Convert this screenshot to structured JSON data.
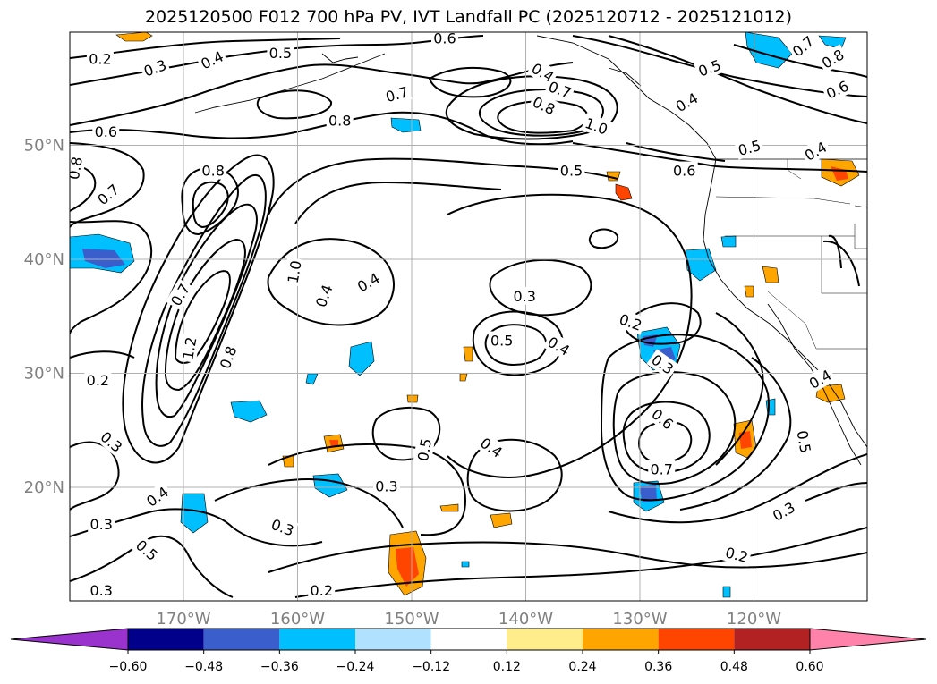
{
  "title": "2025120500 F012 700 hPa PV, IVT Landfall PC (2025120712 - 2025121012)",
  "map": {
    "lat_labels": [
      {
        "lat": 50,
        "text": "50°N"
      },
      {
        "lat": 40,
        "text": "40°N"
      },
      {
        "lat": 30,
        "text": "30°N"
      },
      {
        "lat": 20,
        "text": "20°N"
      }
    ],
    "lon_labels": [
      {
        "lon": -170,
        "text": "170°W"
      },
      {
        "lon": -160,
        "text": "160°W"
      },
      {
        "lon": -150,
        "text": "150°W"
      },
      {
        "lon": -140,
        "text": "140°W"
      },
      {
        "lon": -130,
        "text": "130°W"
      },
      {
        "lon": -120,
        "text": "120°W"
      }
    ],
    "contour_labels": [
      {
        "text": "0.2",
        "lon": -177.3,
        "lat": 57.6,
        "rot": 0
      },
      {
        "text": "0.3",
        "lon": -172.5,
        "lat": 56.8,
        "rot": -20
      },
      {
        "text": "0.4",
        "lon": -167.5,
        "lat": 57.5,
        "rot": -25
      },
      {
        "text": "0.5",
        "lon": -161.5,
        "lat": 58.1,
        "rot": 0
      },
      {
        "text": "0.6",
        "lon": -147.1,
        "lat": 59.4,
        "rot": 0
      },
      {
        "text": "0.4",
        "lon": -138.5,
        "lat": 56.4,
        "rot": 30
      },
      {
        "text": "0.7",
        "lon": -151.3,
        "lat": 54.5,
        "rot": -15
      },
      {
        "text": "0.8",
        "lon": -138.4,
        "lat": 53.5,
        "rot": 25
      },
      {
        "text": "0.7",
        "lon": -137.0,
        "lat": 54.9,
        "rot": 20
      },
      {
        "text": "1.0",
        "lon": -133.8,
        "lat": 51.7,
        "rot": 20
      },
      {
        "text": "0.8",
        "lon": -156.3,
        "lat": 52.2,
        "rot": 0
      },
      {
        "text": "0.7",
        "lon": -115.7,
        "lat": 58.7,
        "rot": -40
      },
      {
        "text": "0.8",
        "lon": -113.1,
        "lat": 57.6,
        "rot": -30
      },
      {
        "text": "0.5",
        "lon": -123.9,
        "lat": 56.8,
        "rot": -20
      },
      {
        "text": "0.4",
        "lon": -125.9,
        "lat": 53.8,
        "rot": -30
      },
      {
        "text": "0.6",
        "lon": -112.7,
        "lat": 54.9,
        "rot": -25
      },
      {
        "text": "0.5",
        "lon": -120.4,
        "lat": 49.8,
        "rot": -15
      },
      {
        "text": "0.4",
        "lon": -114.6,
        "lat": 49.5,
        "rot": -30
      },
      {
        "text": "0.6",
        "lon": -126.1,
        "lat": 47.8,
        "rot": 0
      },
      {
        "text": "0.5",
        "lon": -136.0,
        "lat": 47.8,
        "rot": 0
      },
      {
        "text": "0.6",
        "lon": -176.8,
        "lat": 51.2,
        "rot": 0
      },
      {
        "text": "0.8",
        "lon": -179.5,
        "lat": 48.0,
        "rot": -80
      },
      {
        "text": "0.7",
        "lon": -176.6,
        "lat": 45.7,
        "rot": -40
      },
      {
        "text": "0.8",
        "lon": -167.4,
        "lat": 47.8,
        "rot": 0
      },
      {
        "text": "1.0",
        "lon": -160.3,
        "lat": 38.9,
        "rot": -80
      },
      {
        "text": "0.4",
        "lon": -157.7,
        "lat": 36.8,
        "rot": -70
      },
      {
        "text": "0.7",
        "lon": -170.3,
        "lat": 36.9,
        "rot": -60
      },
      {
        "text": "1.2",
        "lon": -169.5,
        "lat": 32.2,
        "rot": -80
      },
      {
        "text": "0.8",
        "lon": -166.1,
        "lat": 31.4,
        "rot": -70
      },
      {
        "text": "0.4",
        "lon": -153.8,
        "lat": 38.0,
        "rot": -30
      },
      {
        "text": "0.3",
        "lon": -140.1,
        "lat": 36.8,
        "rot": 0
      },
      {
        "text": "0.5",
        "lon": -142.1,
        "lat": 32.9,
        "rot": 0
      },
      {
        "text": "0.4",
        "lon": -137.1,
        "lat": 32.4,
        "rot": 30
      },
      {
        "text": "0.2",
        "lon": -130.8,
        "lat": 34.5,
        "rot": 20
      },
      {
        "text": "0.3",
        "lon": -128.0,
        "lat": 30.8,
        "rot": 35
      },
      {
        "text": "0.2",
        "lon": -177.5,
        "lat": 29.4,
        "rot": 0
      },
      {
        "text": "0.6",
        "lon": -128.0,
        "lat": 26.0,
        "rot": 40
      },
      {
        "text": "0.7",
        "lon": -128.1,
        "lat": 21.6,
        "rot": 0
      },
      {
        "text": "0.5",
        "lon": -115.6,
        "lat": 24.0,
        "rot": 80
      },
      {
        "text": "0.4",
        "lon": -114.2,
        "lat": 29.5,
        "rot": -30
      },
      {
        "text": "0.3",
        "lon": -176.3,
        "lat": 24.0,
        "rot": 40
      },
      {
        "text": "0.5",
        "lon": -148.9,
        "lat": 23.3,
        "rot": -80
      },
      {
        "text": "0.4",
        "lon": -143.0,
        "lat": 23.5,
        "rot": 35
      },
      {
        "text": "0.3",
        "lon": -152.2,
        "lat": 20.1,
        "rot": 0
      },
      {
        "text": "0.4",
        "lon": -172.3,
        "lat": 19.2,
        "rot": -35
      },
      {
        "text": "0.3",
        "lon": -177.2,
        "lat": 16.8,
        "rot": 0
      },
      {
        "text": "0.5",
        "lon": -173.2,
        "lat": 14.5,
        "rot": 40
      },
      {
        "text": "0.3",
        "lon": -161.3,
        "lat": 16.5,
        "rot": 20
      },
      {
        "text": "0.2",
        "lon": -157.9,
        "lat": 11.0,
        "rot": 0
      },
      {
        "text": "0.2",
        "lon": -121.5,
        "lat": 14.1,
        "rot": 15
      },
      {
        "text": "0.3",
        "lon": -117.4,
        "lat": 17.9,
        "rot": -30
      },
      {
        "text": "0.3",
        "lon": -177.2,
        "lat": 11.0,
        "rot": 0
      }
    ]
  },
  "colorbar": {
    "colors": [
      "#9A32CD",
      "#00008B",
      "#3A5FCD",
      "#00BFFF",
      "#B0E2FF",
      "#FFFFFF",
      "#FFEC8B",
      "#FFA500",
      "#FF4500",
      "#B22222",
      "#FF82AB"
    ],
    "ticks": [
      "−0.60",
      "−0.48",
      "−0.36",
      "−0.24",
      "−0.12",
      "0.12",
      "0.24",
      "0.36",
      "0.48",
      "0.60"
    ],
    "tick_values": [
      -0.6,
      -0.48,
      -0.36,
      -0.24,
      -0.12,
      0.12,
      0.24,
      0.36,
      0.48,
      0.6
    ]
  },
  "shading_colors": {
    "neg_light": "#00BFFF",
    "neg_mid": "#3A5FCD",
    "pos_light": "#FFA500",
    "pos_mid": "#FF4500"
  }
}
